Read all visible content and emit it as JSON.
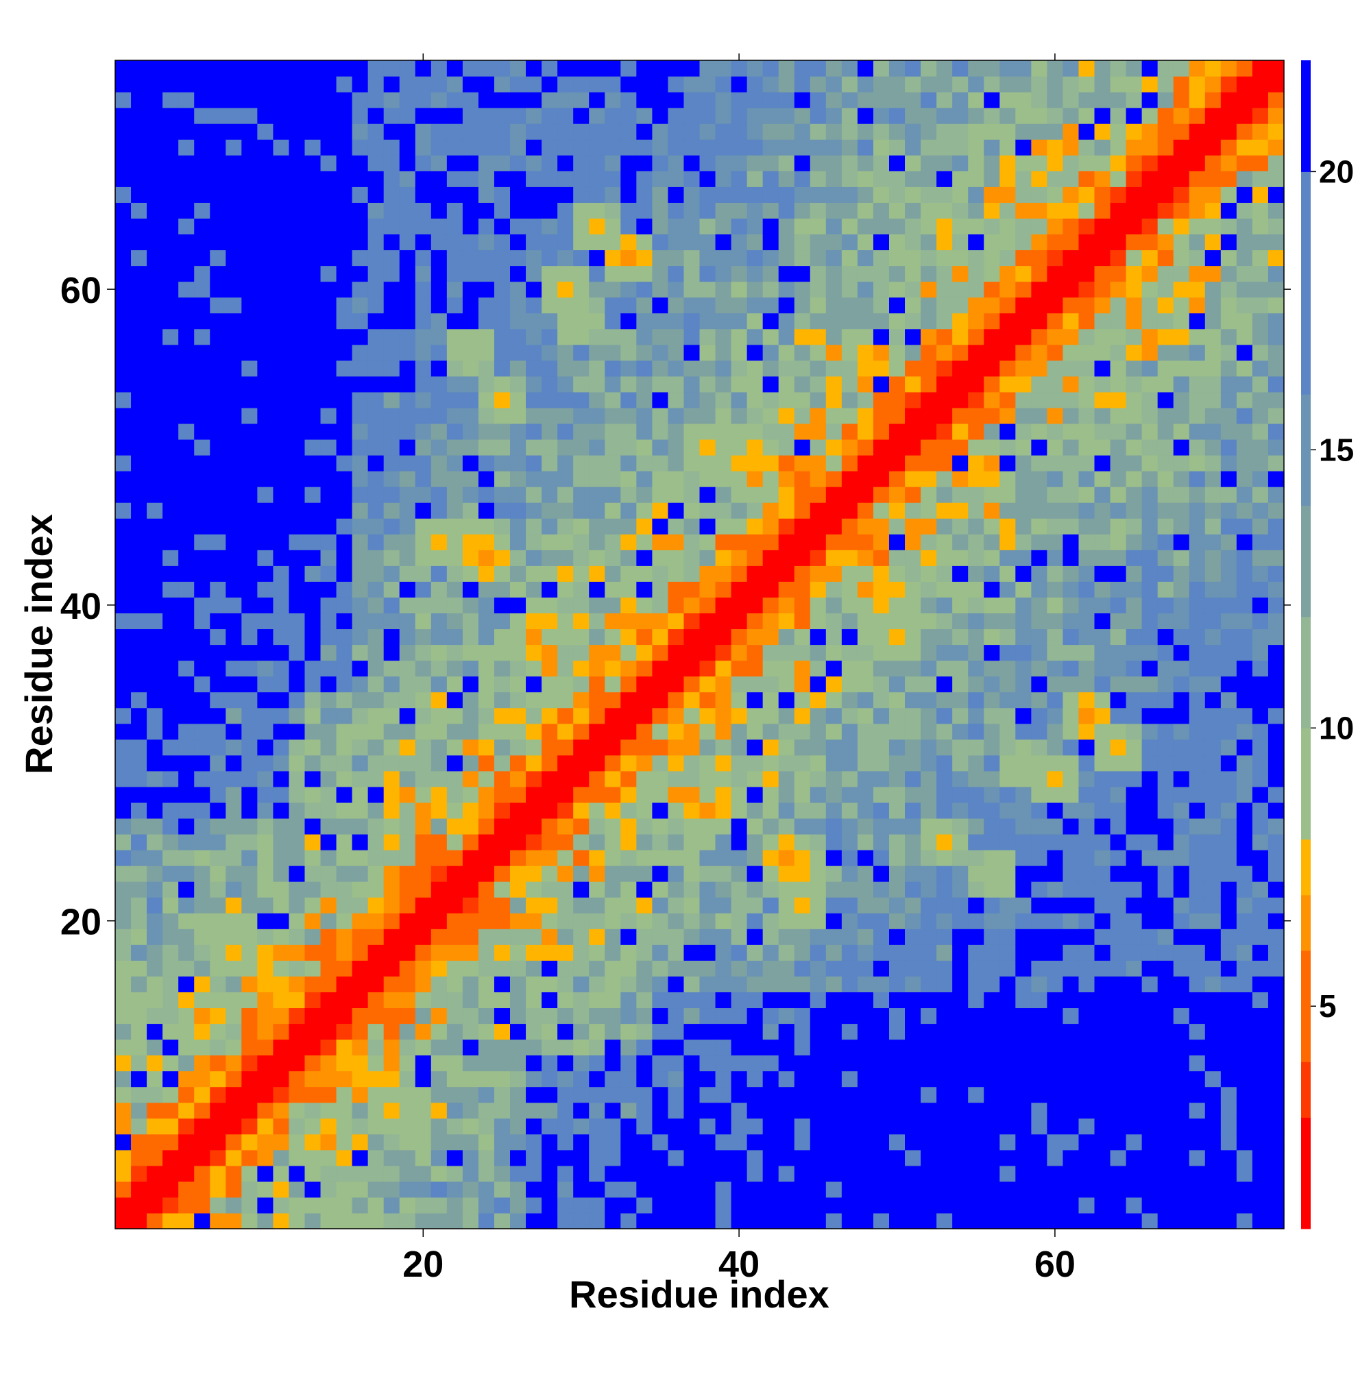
{
  "chart_data": {
    "type": "heatmap",
    "title": "",
    "xlabel": "Residue index",
    "ylabel": "Residue index",
    "n_residues": 74,
    "xlim": [
      1,
      74
    ],
    "ylim": [
      1,
      74
    ],
    "x_ticks": [
      20,
      40,
      60
    ],
    "y_ticks": [
      20,
      40,
      60
    ],
    "colorbar": {
      "min": 1,
      "max": 22,
      "ticks": [
        5,
        10,
        15,
        20
      ],
      "levels": [
        {
          "from": 1,
          "to": 3,
          "color": "#ff0000"
        },
        {
          "from": 3,
          "to": 4,
          "color": "#ff3a00"
        },
        {
          "from": 4,
          "to": 6,
          "color": "#ff6a00"
        },
        {
          "from": 6,
          "to": 7,
          "color": "#ff9200"
        },
        {
          "from": 7,
          "to": 8,
          "color": "#ffb400"
        },
        {
          "from": 8,
          "to": 10,
          "color": "#9cbe8a"
        },
        {
          "from": 10,
          "to": 12,
          "color": "#93b694"
        },
        {
          "from": 12,
          "to": 14,
          "color": "#7ea2a0"
        },
        {
          "from": 14,
          "to": 16,
          "color": "#6a93b4"
        },
        {
          "from": 16,
          "to": 20,
          "color": "#5b85c4"
        },
        {
          "from": 20,
          "to": 22,
          "color": "#0000ff"
        }
      ]
    },
    "value_description": "Symmetric residue-residue distance map; red diagonal band (values < 4), orange band (5-8), green/grey-blue mid range (9-19), pure blue >= 20 far from the diagonal",
    "diagonal_band": {
      "red_max_offset": 1,
      "orange_max_offset": 4
    },
    "contact_clusters": [
      {
        "x": 21,
        "y": 44,
        "value": 7
      },
      {
        "x": 24,
        "y": 43,
        "value": 6
      },
      {
        "x": 28,
        "y": 39,
        "value": 7
      },
      {
        "x": 30,
        "y": 58,
        "value": 7
      },
      {
        "x": 23,
        "y": 56,
        "value": 7
      },
      {
        "x": 33,
        "y": 29,
        "value": 6
      },
      {
        "x": 38,
        "y": 27,
        "value": 6
      },
      {
        "x": 44,
        "y": 23,
        "value": 7
      },
      {
        "x": 41,
        "y": 49,
        "value": 6
      },
      {
        "x": 50,
        "y": 38,
        "value": 7
      },
      {
        "x": 60,
        "y": 29,
        "value": 7
      },
      {
        "x": 53,
        "y": 25,
        "value": 7
      },
      {
        "x": 31,
        "y": 64,
        "value": 7
      },
      {
        "x": 10,
        "y": 16,
        "value": 6
      },
      {
        "x": 8,
        "y": 19,
        "value": 7
      },
      {
        "x": 14,
        "y": 6,
        "value": 6
      },
      {
        "x": 18,
        "y": 8,
        "value": 7
      },
      {
        "x": 62,
        "y": 33,
        "value": 6
      },
      {
        "x": 65,
        "y": 69,
        "value": 6
      },
      {
        "x": 70,
        "y": 67,
        "value": 6
      }
    ]
  }
}
